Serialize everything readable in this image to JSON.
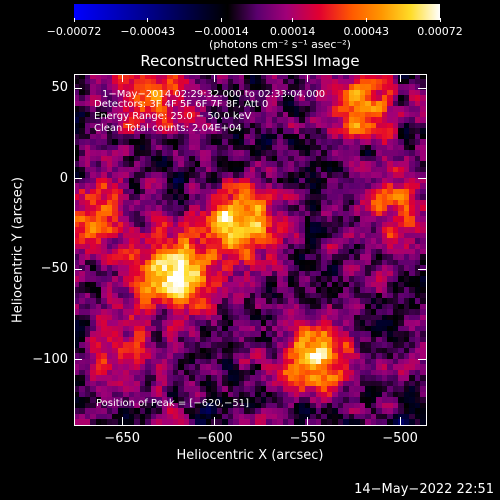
{
  "chart_data": {
    "type": "heatmap",
    "title": "Reconstructed RHESSI Image",
    "xlabel": "Heliocentric X (arcsec)",
    "ylabel": "Heliocentric Y (arcsec)",
    "xlim": [
      -676,
      -486
    ],
    "ylim": [
      -136,
      58
    ],
    "x_ticks": [
      -650,
      -600,
      -550,
      -500
    ],
    "x_tick_labels": [
      "−650",
      "−600",
      "−550",
      "−500"
    ],
    "y_ticks": [
      50,
      0,
      -50,
      -100
    ],
    "y_tick_labels": [
      "50",
      "0",
      "−50",
      "−100"
    ],
    "colorbar": {
      "range": [
        -0.00072,
        0.00072
      ],
      "ticks": [
        -0.00072,
        -0.00043,
        -0.00014,
        0.00014,
        0.00043,
        0.00072
      ],
      "tick_labels": [
        "−0.00072",
        "−0.00043",
        "−0.00014",
        "0.00014",
        "0.00043",
        "0.00072"
      ],
      "units_label": "(photons cm⁻² s⁻¹ asec⁻²)"
    },
    "annotations": [
      " 1−May−2014 02:29:32.000 to 02:33:04.000",
      "Detectors: 3F 4F 5F 6F 7F 8F, Att 0",
      "Energy Range: 25.0 − 50.0 keV",
      "Clean     Total counts: 2.04E+04"
    ],
    "peak_label": "Position of Peak = [−620,−51]",
    "sources": [
      {
        "x": -620,
        "y": -51,
        "intensity": 1.0
      },
      {
        "x": -585,
        "y": -25,
        "intensity": 0.9
      },
      {
        "x": -545,
        "y": -100,
        "intensity": 0.85
      },
      {
        "x": -635,
        "y": 45,
        "intensity": 0.6
      },
      {
        "x": -520,
        "y": 40,
        "intensity": 0.65
      },
      {
        "x": -665,
        "y": -20,
        "intensity": 0.55
      },
      {
        "x": -500,
        "y": -15,
        "intensity": 0.5
      },
      {
        "x": -650,
        "y": -95,
        "intensity": 0.4
      }
    ]
  },
  "footer": {
    "date": "14−May−2022 22:51"
  }
}
